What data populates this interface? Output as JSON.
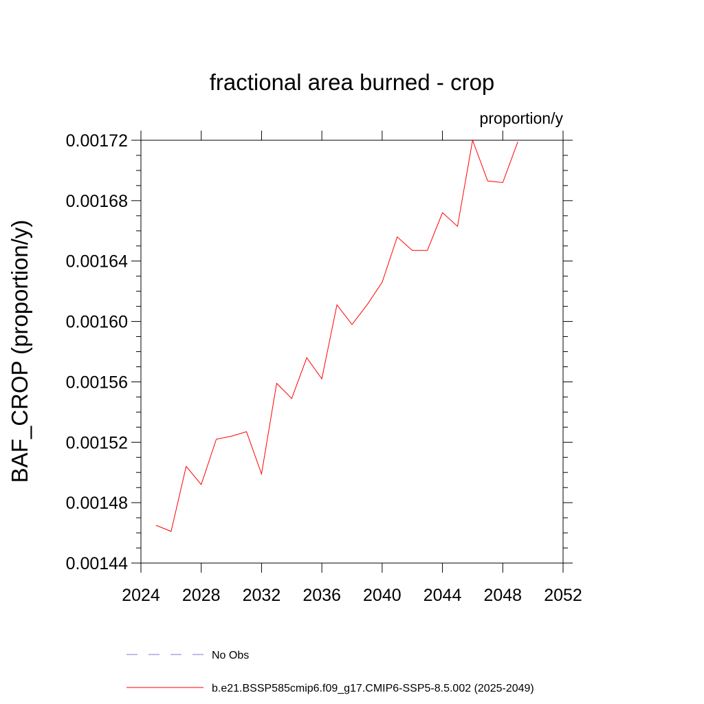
{
  "chart_data": {
    "type": "line",
    "title": "fractional area burned - crop",
    "units": "proportion/y",
    "ylabel": "BAF_CROP  (proportion/y)",
    "xlabel": "",
    "xlim": [
      2024,
      2052
    ],
    "ylim": [
      0.00144,
      0.00172
    ],
    "xticks": [
      2024,
      2028,
      2032,
      2036,
      2040,
      2044,
      2048,
      2052
    ],
    "xtick_labels": [
      "2024",
      "2028",
      "2032",
      "2036",
      "2040",
      "2044",
      "2048",
      "2052"
    ],
    "yticks": [
      0.00144,
      0.00148,
      0.00152,
      0.00156,
      0.0016,
      0.00164,
      0.00168,
      0.00172
    ],
    "ytick_labels": [
      "0.00144",
      "0.00148",
      "0.00152",
      "0.00156",
      "0.00160",
      "0.00164",
      "0.00168",
      "0.00172"
    ],
    "grid": false,
    "legend_position": "bottom",
    "series": [
      {
        "name": "b.e21.BSSP585cmip6.f09_g17.CMIP6-SSP5-8.5.002 (2025-2049)",
        "color": "#ff0000",
        "style": "solid",
        "x": [
          2025,
          2026,
          2027,
          2028,
          2029,
          2030,
          2031,
          2032,
          2033,
          2034,
          2035,
          2036,
          2037,
          2038,
          2039,
          2040,
          2041,
          2042,
          2043,
          2044,
          2045,
          2046,
          2047,
          2048,
          2049
        ],
        "y": [
          0.001465,
          0.001461,
          0.001504,
          0.001492,
          0.001522,
          0.001524,
          0.001527,
          0.001499,
          0.001559,
          0.001549,
          0.001576,
          0.001562,
          0.001611,
          0.001598,
          0.001611,
          0.001626,
          0.001656,
          0.001647,
          0.001647,
          0.001672,
          0.001663,
          0.00172,
          0.001693,
          0.001692,
          0.001719
        ]
      }
    ],
    "legend": [
      {
        "label": "No Obs",
        "color": "#7b7bd0",
        "style": "dashed"
      },
      {
        "label": "b.e21.BSSP585cmip6.f09_g17.CMIP6-SSP5-8.5.002 (2025-2049)",
        "color": "#ff0000",
        "style": "solid"
      }
    ]
  }
}
